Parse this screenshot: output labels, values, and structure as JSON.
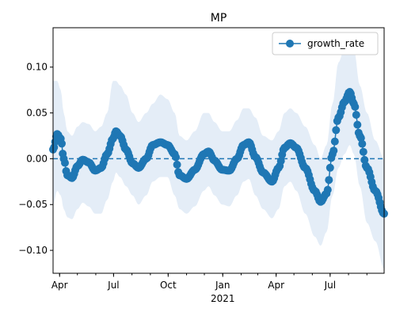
{
  "chart_data": {
    "type": "line",
    "title": "MP",
    "xlabel": "",
    "ylabel": "",
    "x_start": "2020-03-21",
    "x_end": "2021-09-30",
    "ylim": [
      -0.125,
      0.143
    ],
    "yticks": [
      -0.1,
      -0.05,
      0.0,
      0.05,
      0.1
    ],
    "ytick_labels": [
      "−0.10",
      "−0.05",
      "0.00",
      "0.05",
      "0.10"
    ],
    "xticks": [
      {
        "date": "2020-04-01",
        "label": "Apr"
      },
      {
        "date": "2020-07-01",
        "label": "Jul"
      },
      {
        "date": "2020-10-01",
        "label": "Oct"
      },
      {
        "date": "2021-01-01",
        "label": "Jan"
      },
      {
        "date": "2021-04-01",
        "label": "Apr"
      },
      {
        "date": "2021-07-01",
        "label": "Jul"
      }
    ],
    "year_label": {
      "date": "2021-01-01",
      "label": "2021"
    },
    "reference_line": {
      "y": 0.0,
      "style": "dashed",
      "color": "#1f77b4"
    },
    "legend": {
      "placement": "top-right",
      "entries": [
        "growth_rate"
      ]
    },
    "grid": false,
    "series": [
      {
        "name": "growth_rate",
        "color": "#1f77b4",
        "band_color": "#dbe7f4",
        "points": [
          {
            "x": "2020-03-21",
            "y": 0.01,
            "lo": -0.05,
            "hi": 0.085
          },
          {
            "x": "2020-03-28",
            "y": 0.027,
            "lo": -0.035,
            "hi": 0.085
          },
          {
            "x": "2020-04-03",
            "y": 0.022,
            "lo": -0.04,
            "hi": 0.075
          },
          {
            "x": "2020-04-08",
            "y": 0.0,
            "lo": -0.055,
            "hi": 0.05
          },
          {
            "x": "2020-04-14",
            "y": -0.018,
            "lo": -0.064,
            "hi": 0.03
          },
          {
            "x": "2020-04-22",
            "y": -0.021,
            "lo": -0.066,
            "hi": 0.025
          },
          {
            "x": "2020-05-01",
            "y": -0.008,
            "lo": -0.055,
            "hi": 0.035
          },
          {
            "x": "2020-05-10",
            "y": -0.001,
            "lo": -0.048,
            "hi": 0.04
          },
          {
            "x": "2020-05-20",
            "y": -0.004,
            "lo": -0.052,
            "hi": 0.038
          },
          {
            "x": "2020-05-31",
            "y": -0.013,
            "lo": -0.06,
            "hi": 0.03
          },
          {
            "x": "2020-06-10",
            "y": -0.01,
            "lo": -0.06,
            "hi": 0.035
          },
          {
            "x": "2020-06-20",
            "y": 0.005,
            "lo": -0.045,
            "hi": 0.05
          },
          {
            "x": "2020-06-30",
            "y": 0.022,
            "lo": -0.025,
            "hi": 0.085
          },
          {
            "x": "2020-07-05",
            "y": 0.03,
            "lo": -0.015,
            "hi": 0.085
          },
          {
            "x": "2020-07-12",
            "y": 0.025,
            "lo": -0.02,
            "hi": 0.08
          },
          {
            "x": "2020-07-22",
            "y": 0.01,
            "lo": -0.03,
            "hi": 0.07
          },
          {
            "x": "2020-08-02",
            "y": -0.005,
            "lo": -0.04,
            "hi": 0.05
          },
          {
            "x": "2020-08-12",
            "y": -0.01,
            "lo": -0.05,
            "hi": 0.04
          },
          {
            "x": "2020-08-25",
            "y": 0.0,
            "lo": -0.04,
            "hi": 0.05
          },
          {
            "x": "2020-09-05",
            "y": 0.015,
            "lo": -0.025,
            "hi": 0.06
          },
          {
            "x": "2020-09-18",
            "y": 0.018,
            "lo": -0.02,
            "hi": 0.07
          },
          {
            "x": "2020-09-30",
            "y": 0.015,
            "lo": -0.02,
            "hi": 0.065
          },
          {
            "x": "2020-10-12",
            "y": 0.005,
            "lo": -0.04,
            "hi": 0.05
          },
          {
            "x": "2020-10-20",
            "y": -0.018,
            "lo": -0.055,
            "hi": 0.025
          },
          {
            "x": "2020-11-01",
            "y": -0.022,
            "lo": -0.06,
            "hi": 0.02
          },
          {
            "x": "2020-11-15",
            "y": -0.012,
            "lo": -0.052,
            "hi": 0.03
          },
          {
            "x": "2020-11-30",
            "y": 0.005,
            "lo": -0.035,
            "hi": 0.05
          },
          {
            "x": "2020-12-08",
            "y": 0.008,
            "lo": -0.03,
            "hi": 0.05
          },
          {
            "x": "2020-12-18",
            "y": -0.002,
            "lo": -0.04,
            "hi": 0.04
          },
          {
            "x": "2020-12-31",
            "y": -0.012,
            "lo": -0.05,
            "hi": 0.03
          },
          {
            "x": "2021-01-12",
            "y": -0.013,
            "lo": -0.052,
            "hi": 0.03
          },
          {
            "x": "2021-01-25",
            "y": 0.0,
            "lo": -0.04,
            "hi": 0.042
          },
          {
            "x": "2021-02-05",
            "y": 0.015,
            "lo": -0.025,
            "hi": 0.055
          },
          {
            "x": "2021-02-14",
            "y": 0.018,
            "lo": -0.022,
            "hi": 0.055
          },
          {
            "x": "2021-02-25",
            "y": 0.002,
            "lo": -0.04,
            "hi": 0.045
          },
          {
            "x": "2021-03-10",
            "y": -0.015,
            "lo": -0.055,
            "hi": 0.025
          },
          {
            "x": "2021-03-25",
            "y": -0.025,
            "lo": -0.065,
            "hi": 0.02
          },
          {
            "x": "2021-04-05",
            "y": -0.01,
            "lo": -0.055,
            "hi": 0.03
          },
          {
            "x": "2021-04-15",
            "y": 0.012,
            "lo": -0.03,
            "hi": 0.05
          },
          {
            "x": "2021-04-25",
            "y": 0.017,
            "lo": -0.025,
            "hi": 0.055
          },
          {
            "x": "2021-05-05",
            "y": 0.012,
            "lo": -0.035,
            "hi": 0.05
          },
          {
            "x": "2021-05-20",
            "y": -0.01,
            "lo": -0.06,
            "hi": 0.035
          },
          {
            "x": "2021-06-05",
            "y": -0.035,
            "lo": -0.085,
            "hi": 0.015
          },
          {
            "x": "2021-06-15",
            "y": -0.047,
            "lo": -0.095,
            "hi": 0.0
          },
          {
            "x": "2021-06-25",
            "y": -0.038,
            "lo": -0.08,
            "hi": 0.015
          },
          {
            "x": "2021-07-05",
            "y": 0.005,
            "lo": -0.04,
            "hi": 0.06
          },
          {
            "x": "2021-07-15",
            "y": 0.045,
            "lo": -0.01,
            "hi": 0.105
          },
          {
            "x": "2021-07-25",
            "y": 0.062,
            "lo": 0.005,
            "hi": 0.12
          },
          {
            "x": "2021-08-03",
            "y": 0.073,
            "lo": 0.015,
            "hi": 0.13
          },
          {
            "x": "2021-08-10",
            "y": 0.06,
            "lo": 0.005,
            "hi": 0.12
          },
          {
            "x": "2021-08-20",
            "y": 0.025,
            "lo": -0.03,
            "hi": 0.08
          },
          {
            "x": "2021-09-01",
            "y": -0.01,
            "lo": -0.07,
            "hi": 0.05
          },
          {
            "x": "2021-09-15",
            "y": -0.035,
            "lo": -0.09,
            "hi": 0.02
          },
          {
            "x": "2021-09-30",
            "y": -0.06,
            "lo": -0.12,
            "hi": 0.0
          }
        ]
      }
    ]
  }
}
